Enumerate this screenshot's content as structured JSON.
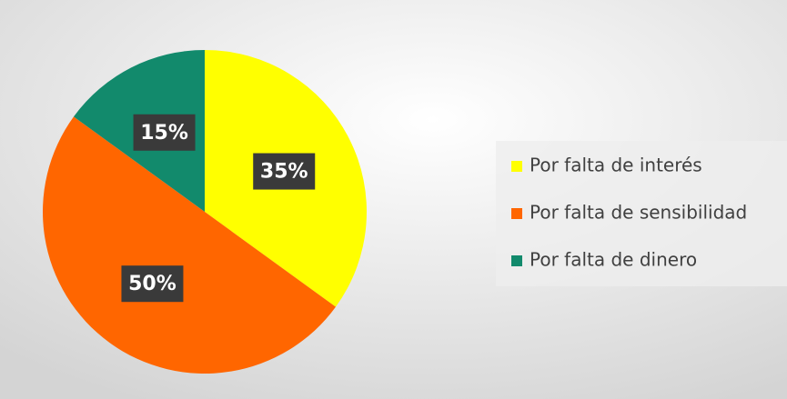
{
  "chart_data": {
    "type": "pie",
    "categories": [
      "Por falta de interés",
      "Por falta de sensibilidad",
      "Por falta de dinero"
    ],
    "values": [
      35,
      50,
      15
    ],
    "value_labels": [
      "35%",
      "50%",
      "15%"
    ],
    "colors": [
      "#ffff00",
      "#ff6600",
      "#128a6c"
    ],
    "legend": "right"
  }
}
